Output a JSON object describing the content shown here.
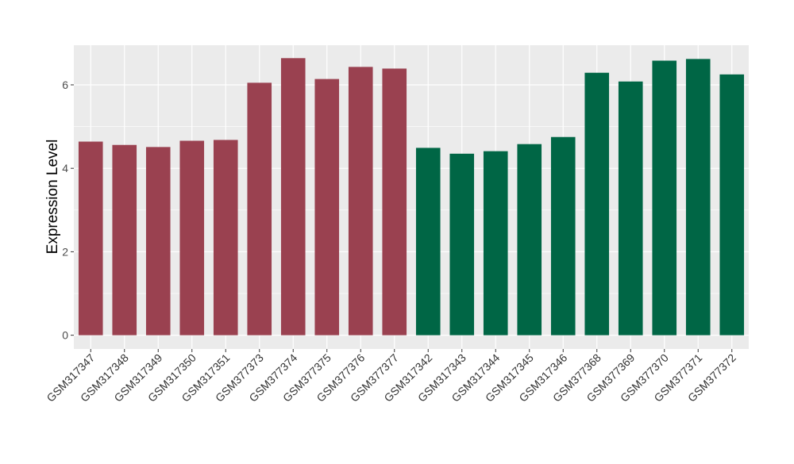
{
  "chart_data": {
    "type": "bar",
    "title": "",
    "xlabel": "",
    "ylabel": "Expression Level",
    "ylim": [
      -0.33,
      6.95
    ],
    "yticks": [
      0,
      2,
      4,
      6
    ],
    "grid": true,
    "legend": "none",
    "categories": [
      "GSM317347",
      "GSM317348",
      "GSM317349",
      "GSM317350",
      "GSM317351",
      "GSM377373",
      "GSM377374",
      "GSM377375",
      "GSM377376",
      "GSM377377",
      "GSM317342",
      "GSM317343",
      "GSM317344",
      "GSM317345",
      "GSM317346",
      "GSM377368",
      "GSM377369",
      "GSM377370",
      "GSM377371",
      "GSM377372"
    ],
    "values": [
      4.64,
      4.56,
      4.51,
      4.66,
      4.68,
      6.05,
      6.64,
      6.14,
      6.43,
      6.39,
      4.49,
      4.35,
      4.41,
      4.58,
      4.75,
      6.29,
      6.08,
      6.58,
      6.62,
      6.25
    ],
    "groups": [
      0,
      0,
      0,
      0,
      0,
      0,
      0,
      0,
      0,
      0,
      1,
      1,
      1,
      1,
      1,
      1,
      1,
      1,
      1,
      1
    ],
    "group_colors": [
      "#9A4150",
      "#006645"
    ],
    "panel_background": "#EBEBEB"
  }
}
